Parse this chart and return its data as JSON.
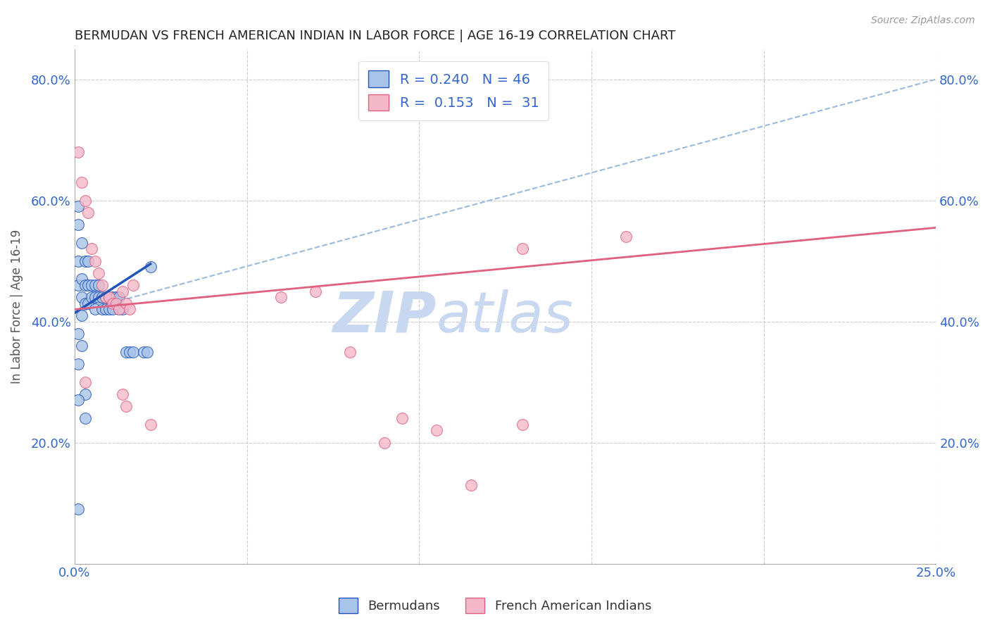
{
  "title": "BERMUDAN VS FRENCH AMERICAN INDIAN IN LABOR FORCE | AGE 16-19 CORRELATION CHART",
  "source": "Source: ZipAtlas.com",
  "ylabel": "In Labor Force | Age 16-19",
  "xlim": [
    0.0,
    0.25
  ],
  "ylim": [
    0.0,
    0.85
  ],
  "bermudans_R": 0.24,
  "bermudans_N": 46,
  "french_R": 0.153,
  "french_N": 31,
  "scatter_color_bermudans": "#a8c4e8",
  "scatter_color_french": "#f4b8c8",
  "trend_color_bermudans": "#2255bb",
  "trend_color_french": "#e06080",
  "trend_dashed_color": "#99bbdd",
  "watermark_zip": "ZIP",
  "watermark_atlas": "atlas",
  "watermark_color": "#c8d8f0",
  "legend_label_bermudans": "Bermudans",
  "legend_label_french": "French American Indians",
  "bx": [
    0.001,
    0.001,
    0.001,
    0.001,
    0.001,
    0.001,
    0.002,
    0.002,
    0.002,
    0.002,
    0.002,
    0.003,
    0.003,
    0.003,
    0.003,
    0.004,
    0.004,
    0.004,
    0.005,
    0.005,
    0.006,
    0.006,
    0.006,
    0.007,
    0.007,
    0.008,
    0.008,
    0.009,
    0.009,
    0.01,
    0.01,
    0.011,
    0.011,
    0.012,
    0.013,
    0.013,
    0.014,
    0.015,
    0.016,
    0.017,
    0.02,
    0.021,
    0.001,
    0.001,
    0.003,
    0.022
  ],
  "by": [
    0.59,
    0.56,
    0.5,
    0.46,
    0.38,
    0.33,
    0.53,
    0.47,
    0.44,
    0.41,
    0.36,
    0.5,
    0.46,
    0.43,
    0.28,
    0.5,
    0.46,
    0.43,
    0.46,
    0.44,
    0.46,
    0.44,
    0.42,
    0.46,
    0.44,
    0.44,
    0.42,
    0.44,
    0.42,
    0.44,
    0.42,
    0.44,
    0.42,
    0.44,
    0.44,
    0.42,
    0.42,
    0.35,
    0.35,
    0.35,
    0.35,
    0.35,
    0.27,
    0.09,
    0.24,
    0.49
  ],
  "fx": [
    0.001,
    0.002,
    0.003,
    0.004,
    0.005,
    0.006,
    0.007,
    0.008,
    0.009,
    0.01,
    0.011,
    0.012,
    0.013,
    0.014,
    0.015,
    0.016,
    0.017,
    0.06,
    0.07,
    0.08,
    0.095,
    0.105,
    0.115,
    0.13,
    0.16,
    0.003,
    0.014,
    0.015,
    0.022,
    0.09,
    0.13
  ],
  "fy": [
    0.68,
    0.63,
    0.6,
    0.58,
    0.52,
    0.5,
    0.48,
    0.46,
    0.44,
    0.44,
    0.43,
    0.43,
    0.42,
    0.45,
    0.43,
    0.42,
    0.46,
    0.44,
    0.45,
    0.35,
    0.24,
    0.22,
    0.13,
    0.23,
    0.54,
    0.3,
    0.28,
    0.26,
    0.23,
    0.2,
    0.52
  ],
  "trend_b_x0": 0.0,
  "trend_b_y0": 0.414,
  "trend_b_x1": 0.022,
  "trend_b_y1": 0.495,
  "trend_b_dash_x1": 0.25,
  "trend_b_dash_y1": 0.8,
  "trend_f_x0": 0.0,
  "trend_f_y0": 0.42,
  "trend_f_x1": 0.25,
  "trend_f_y1": 0.555
}
